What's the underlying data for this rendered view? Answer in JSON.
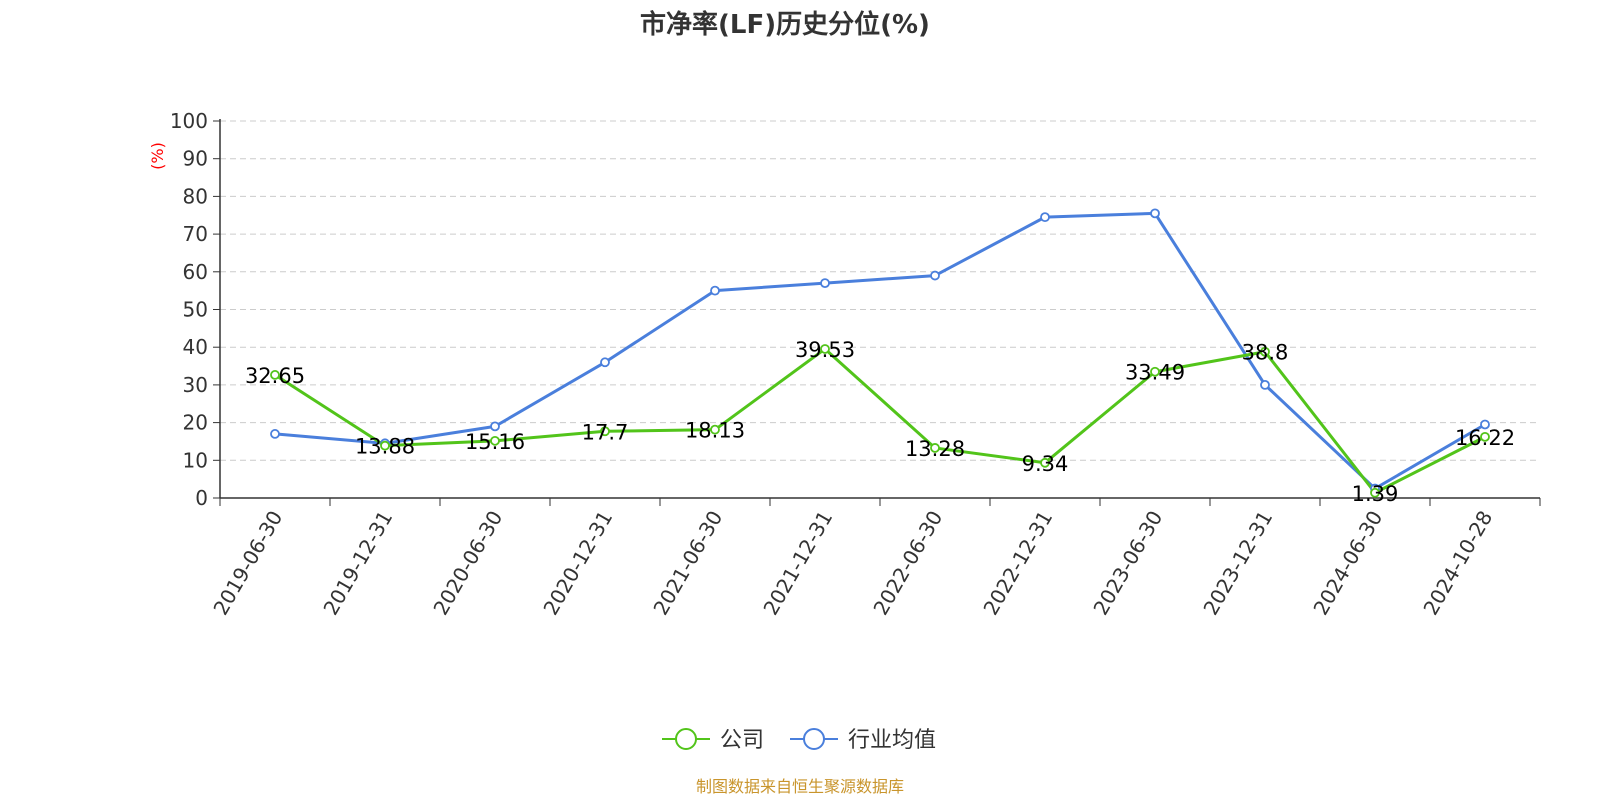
{
  "title": "市净率(LF)历史分位(%)",
  "source_note": "制图数据来自恒生聚源数据库",
  "colors": {
    "company": "#52c41a",
    "industry": "#4a7fdc",
    "grid": "#cccccc",
    "axis": "#333333",
    "unit": "#ff0000",
    "source": "#c9952c"
  },
  "chart_data": {
    "type": "line",
    "title": "市净率(LF)历史分位(%)",
    "ylabel": "(%)",
    "xlabel": "",
    "ylim": [
      0,
      100
    ],
    "yticks": [
      0,
      10,
      20,
      30,
      40,
      50,
      60,
      70,
      80,
      90,
      100
    ],
    "grid": true,
    "legend_position": "bottom-center",
    "categories": [
      "2019-06-30",
      "2019-12-31",
      "2020-06-30",
      "2020-12-31",
      "2021-06-30",
      "2021-12-31",
      "2022-06-30",
      "2022-12-31",
      "2023-06-30",
      "2023-12-31",
      "2024-06-30",
      "2024-10-28"
    ],
    "series": [
      {
        "name": "公司",
        "color": "#52c41a",
        "values": [
          32.65,
          13.88,
          15.16,
          17.7,
          18.13,
          39.53,
          13.28,
          9.34,
          33.49,
          38.8,
          1.39,
          16.22
        ],
        "labels": [
          "32.65",
          "13.88",
          "15.16",
          "17.7",
          "18.13",
          "39.53",
          "13.28",
          "9.34",
          "33.49",
          "38.8",
          "1.39",
          "16.22"
        ]
      },
      {
        "name": "行业均值",
        "color": "#4a7fdc",
        "values": [
          17.0,
          14.5,
          19.0,
          36.0,
          55.0,
          57.0,
          59.0,
          74.5,
          75.5,
          30.0,
          2.5,
          19.5
        ]
      }
    ]
  }
}
